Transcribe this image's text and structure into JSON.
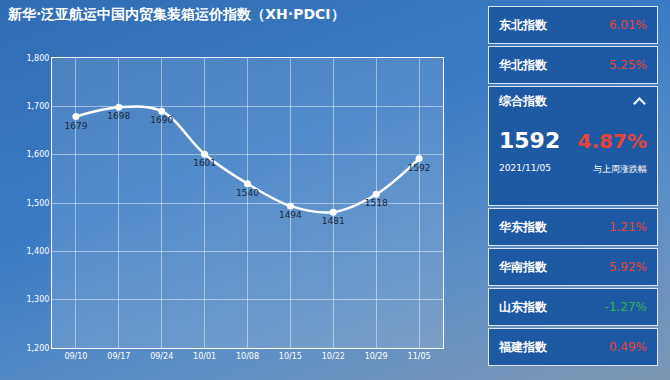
{
  "chart_data": {
    "type": "line",
    "title": "新华·泛亚航运中国内贸集装箱运价指数（XH·PDCI）",
    "categories": [
      "09/10",
      "09/17",
      "09/24",
      "10/01",
      "10/08",
      "10/15",
      "10/22",
      "10/29",
      "11/05"
    ],
    "values": [
      1679,
      1698,
      1690,
      1601,
      1540,
      1494,
      1481,
      1518,
      1592
    ],
    "color": "#ffffff",
    "marker": "circle",
    "line_style": "solid",
    "ylim": [
      1200,
      1800
    ],
    "yticks": [
      {
        "value": 1200,
        "label": "1,200"
      },
      {
        "value": 1300,
        "label": "1,300"
      },
      {
        "value": 1400,
        "label": "1,400"
      },
      {
        "value": 1500,
        "label": "1,500"
      },
      {
        "value": 1600,
        "label": "1,600"
      },
      {
        "value": 1700,
        "label": "1,700"
      },
      {
        "value": 1800,
        "label": "1,800"
      }
    ],
    "grid": true,
    "data_labels": true
  },
  "panel": {
    "before": [
      {
        "name": "东北指数",
        "change": "6.01%",
        "color": "#e8433a"
      },
      {
        "name": "华北指数",
        "change": "5.25%",
        "color": "#e8433a"
      }
    ],
    "main": {
      "name": "综合指数",
      "value": "1592",
      "change": "4.87%",
      "color": "#e8433a",
      "date": "2021/11/05",
      "note": "与上周涨跌幅"
    },
    "after": [
      {
        "name": "华东指数",
        "change": "1.21%",
        "color": "#e8433a"
      },
      {
        "name": "华南指数",
        "change": "5.92%",
        "color": "#e8433a"
      },
      {
        "name": "山东指数",
        "change": "-1.27%",
        "color": "#2fb35a"
      },
      {
        "name": "福建指数",
        "change": "0.49%",
        "color": "#e8433a"
      }
    ]
  }
}
